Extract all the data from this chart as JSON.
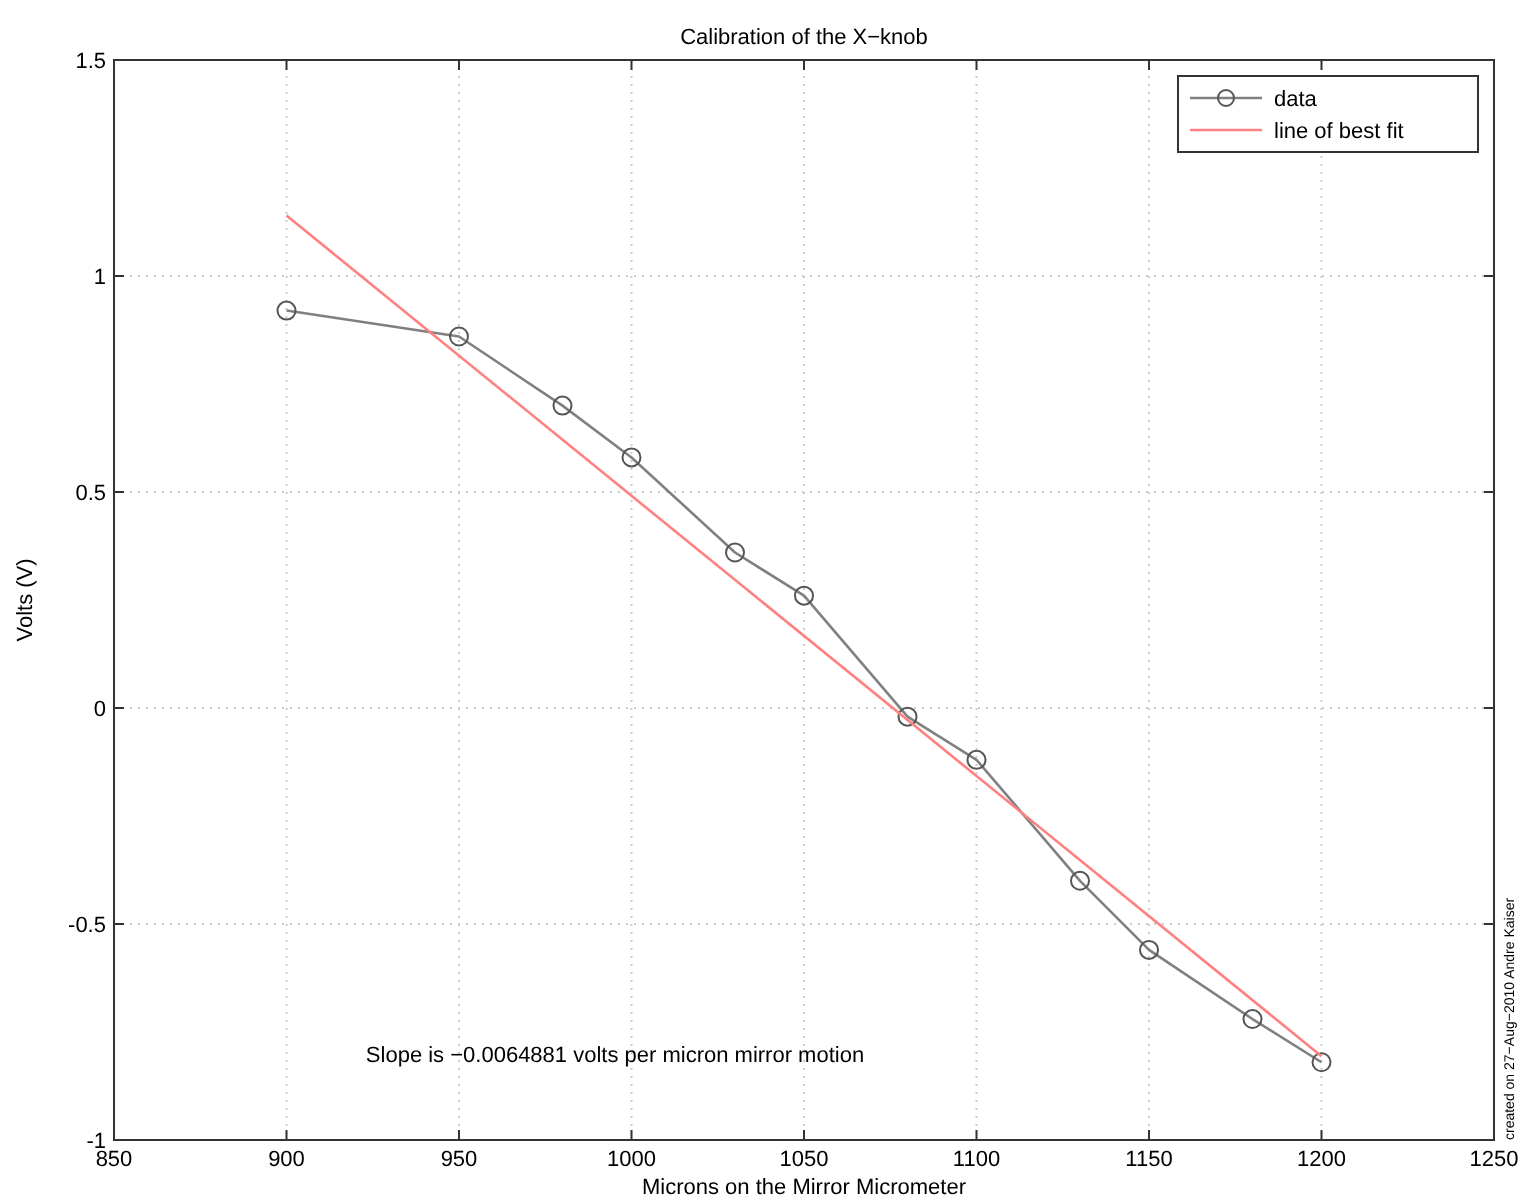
{
  "chart_data": {
    "type": "line",
    "title": "Calibration of the X−knob",
    "xlabel": "Microns on the Mirror Micrometer",
    "ylabel": "Volts (V)",
    "xlim": [
      850,
      1250
    ],
    "xticks": [
      850,
      900,
      950,
      1000,
      1050,
      1100,
      1150,
      1200,
      1250
    ],
    "ylim": [
      -1,
      1.5
    ],
    "yticks": [
      -1,
      -0.5,
      0,
      0.5,
      1,
      1.5
    ],
    "grid": true,
    "legend": "top right",
    "series": [
      {
        "name": "data",
        "color": "#808080",
        "marker": "circle",
        "x": [
          900,
          950,
          980,
          1000,
          1030,
          1050,
          1080,
          1100,
          1130,
          1150,
          1180,
          1200
        ],
        "values": [
          0.92,
          0.86,
          0.7,
          0.58,
          0.36,
          0.26,
          -0.02,
          -0.12,
          -0.4,
          -0.56,
          -0.72,
          -0.82
        ]
      },
      {
        "name": "line of best fit",
        "color": "#ff8080",
        "marker": "none",
        "x": [
          900,
          1200
        ],
        "values": [
          1.14,
          -0.806
        ]
      }
    ],
    "annotations": [
      "Slope is  −0.0064881 volts per micron mirror motion",
      "created on 27−Aug−2010 Andre Kaiser"
    ]
  }
}
